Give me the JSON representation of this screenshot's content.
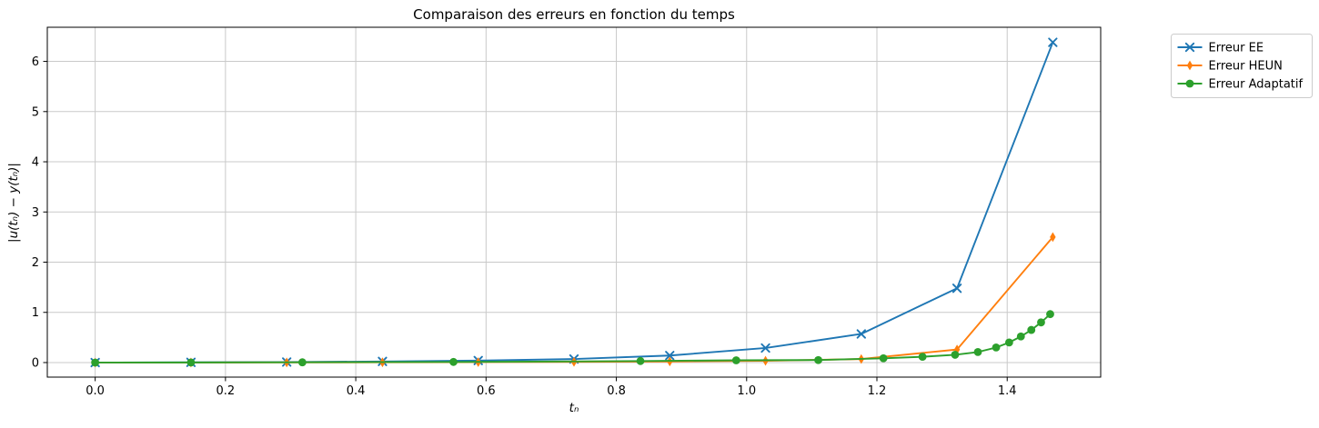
{
  "chart_data": {
    "type": "line",
    "title": "Comparaison des erreurs en fonction du temps",
    "xlabel": "tₙ",
    "ylabel": "|u(tₙ) − y(tₙ)|",
    "grid": true,
    "legend_position": "outside-top-right",
    "xlim": [
      -0.0735,
      1.5435
    ],
    "ylim": [
      -0.29,
      6.68
    ],
    "xtick_values": [
      0.0,
      0.2,
      0.4,
      0.6,
      0.8,
      1.0,
      1.2,
      1.4
    ],
    "xtick_labels": [
      "0.0",
      "0.2",
      "0.4",
      "0.6",
      "0.8",
      "1.0",
      "1.2",
      "1.4"
    ],
    "ytick_values": [
      0,
      1,
      2,
      3,
      4,
      5,
      6
    ],
    "ytick_labels": [
      "0",
      "1",
      "2",
      "3",
      "4",
      "5",
      "6"
    ],
    "colors": {
      "ee": "#1f77b4",
      "heun": "#ff7f0e",
      "adaptatif": "#2ca02c",
      "grid": "#c9c9c9",
      "frame": "#000000",
      "legend_border": "#cccccc"
    },
    "series": [
      {
        "name": "Erreur EE",
        "color": "#1f77b4",
        "marker": "x",
        "x": [
          0.0,
          0.147,
          0.294,
          0.441,
          0.588,
          0.735,
          0.882,
          1.029,
          1.176,
          1.323,
          1.47
        ],
        "y": [
          0.0,
          0.004,
          0.01,
          0.022,
          0.04,
          0.07,
          0.14,
          0.29,
          0.57,
          1.48,
          6.38
        ]
      },
      {
        "name": "Erreur HEUN",
        "color": "#ff7f0e",
        "marker": "thin-diamond",
        "x": [
          0.0,
          0.147,
          0.294,
          0.441,
          0.588,
          0.735,
          0.882,
          1.029,
          1.176,
          1.323,
          1.47
        ],
        "y": [
          0.0,
          0.001,
          0.003,
          0.005,
          0.009,
          0.014,
          0.022,
          0.035,
          0.07,
          0.26,
          2.5
        ]
      },
      {
        "name": "Erreur Adaptatif",
        "color": "#2ca02c",
        "marker": "circle",
        "x": [
          0.0,
          0.147,
          0.318,
          0.55,
          0.837,
          0.984,
          1.11,
          1.21,
          1.27,
          1.32,
          1.355,
          1.383,
          1.403,
          1.421,
          1.437,
          1.452,
          1.466
        ],
        "y": [
          0.0,
          0.002,
          0.005,
          0.012,
          0.03,
          0.045,
          0.05,
          0.085,
          0.115,
          0.155,
          0.21,
          0.3,
          0.4,
          0.52,
          0.65,
          0.8,
          0.965
        ]
      }
    ]
  }
}
